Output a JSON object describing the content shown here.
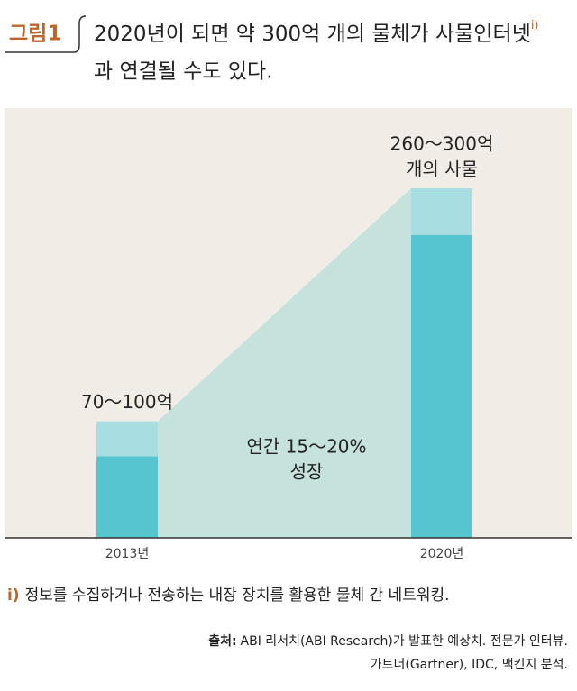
{
  "chart_data": {
    "type": "range_bar",
    "figure_label": "그림1",
    "title": "2020년이 되면 약 300억 개의 물체가 사물인터넷",
    "title_note_mark": "i)",
    "title_cont": "과 연결될 수도 있다.",
    "categories": [
      "2013년",
      "2020년"
    ],
    "low": [
      70,
      260
    ],
    "high": [
      100,
      300
    ],
    "value_labels": [
      [
        "70～100억"
      ],
      [
        "260～300억",
        "개의 사물"
      ]
    ],
    "low_color": "#56c5d0",
    "high_color": "#a8dde1",
    "ylim": [
      0,
      300
    ],
    "annotation": [
      "연간 15～20%",
      "성장"
    ],
    "footnote_mark": "i)",
    "footnote": "정보를 수집하거나 전송하는 내장 장치를 활용한 물체 간 네트워킹.",
    "source_label": "출처:",
    "source_lines": [
      "ABI 리서치(ABI Research)가 발표한 예상치. 전문가 인터뷰.",
      "가트너(Gartner), IDC, 맥킨지 분석."
    ]
  }
}
